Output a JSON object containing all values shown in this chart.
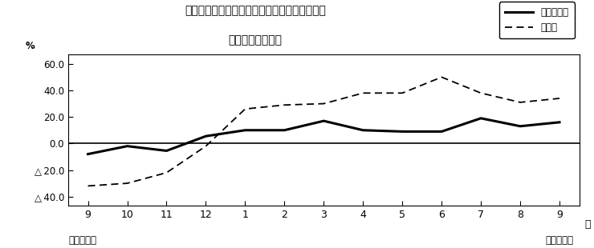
{
  "title_line1": "第２図　所定外労働時間　対前年同月比の推移",
  "title_line2": "（規樯５人以上）",
  "x_labels": [
    "9",
    "10",
    "11",
    "12",
    "1",
    "2",
    "3",
    "4",
    "5",
    "6",
    "7",
    "8",
    "9"
  ],
  "x_unit": "月",
  "x_bottom_left": "平成２１年",
  "x_bottom_right": "平成２２年",
  "y_label": "%",
  "ylim_low": -47,
  "ylim_high": 67,
  "y_ticks": [
    60.0,
    40.0,
    20.0,
    0.0,
    -20.0,
    -40.0
  ],
  "series1_name": "調査産業計",
  "series1_values": [
    -8.0,
    -2.0,
    -5.5,
    5.5,
    10.0,
    10.0,
    17.0,
    10.0,
    9.0,
    9.0,
    19.0,
    13.0,
    16.0
  ],
  "series2_name": "製造業",
  "series2_values": [
    -32.0,
    -30.0,
    -22.0,
    -2.0,
    26.0,
    29.0,
    30.0,
    38.0,
    38.0,
    50.0,
    38.0,
    31.0,
    34.0
  ],
  "series1_lw": 2.2,
  "series2_lw": 1.3,
  "fig_width": 7.4,
  "fig_height": 3.1,
  "dpi": 100
}
